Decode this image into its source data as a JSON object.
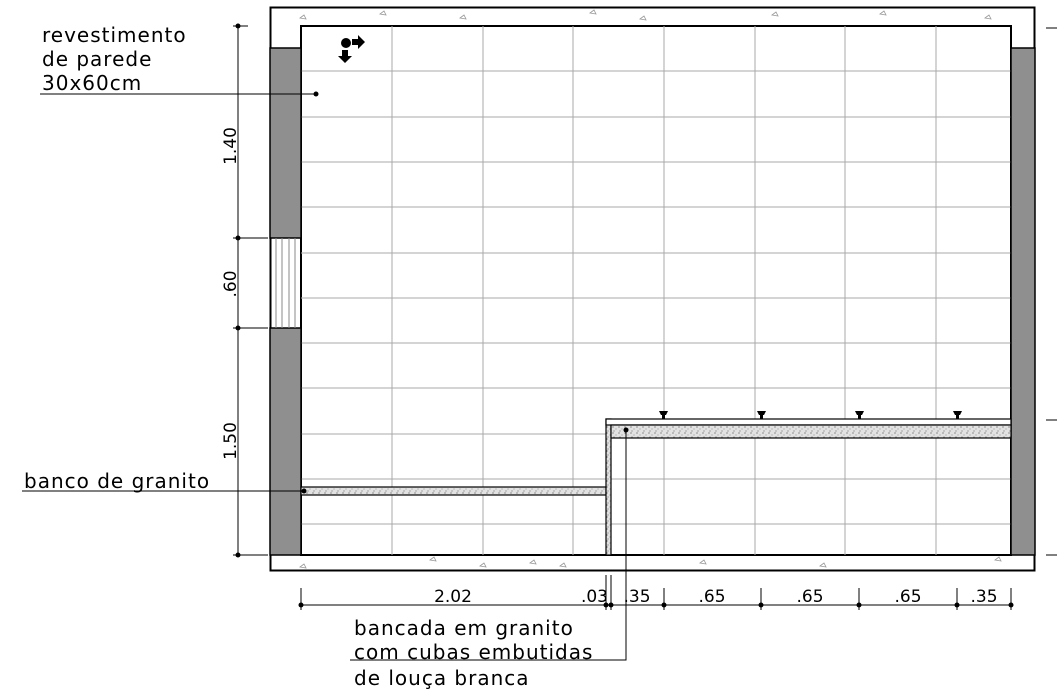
{
  "labels": {
    "wall_tile_line1": "revestimento",
    "wall_tile_line2": "de parede",
    "wall_tile_line3": "30x60cm",
    "bench": "banco de granito",
    "counter_line1": "bancada em granito",
    "counter_line2": "com cubas embutidas",
    "counter_line3": "de louça branca"
  },
  "dimensions": {
    "vertical": [
      {
        "label": "1.40"
      },
      {
        "label": ".60"
      },
      {
        "label": "1.50"
      }
    ],
    "horizontal": [
      {
        "label": "2.02"
      },
      {
        "label": ".03"
      },
      {
        "label": ".35"
      },
      {
        "label": ".65"
      },
      {
        "label": ".65"
      },
      {
        "label": ".65"
      },
      {
        "label": ".35"
      }
    ]
  },
  "colors": {
    "wall_fill": "#8f8f8f",
    "line": "#000000",
    "grid": "#a9a9a9",
    "granite_fill": "#d8d8d8"
  }
}
